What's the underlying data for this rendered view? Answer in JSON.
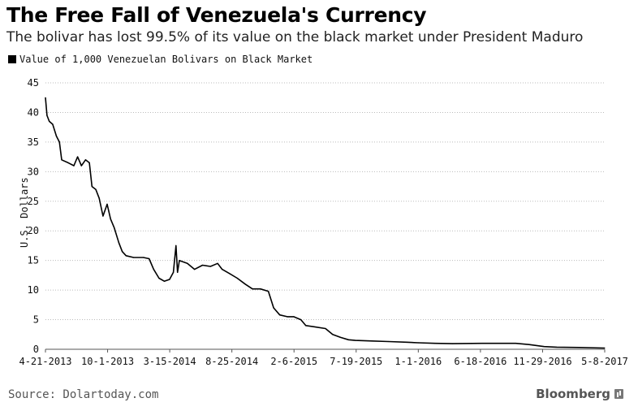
{
  "title": "The Free Fall of Venezuela's Currency",
  "subtitle": "The bolivar has lost 99.5% of its value on the black market under President Maduro",
  "source": "Source: Dolartoday.com",
  "brand": "Bloomberg",
  "colors": {
    "line": "#000000",
    "grid": "#bbbbbb",
    "axis": "#555555",
    "swatch": "#000000"
  },
  "chart_data": {
    "type": "line",
    "title": "The Free Fall of Venezuela's Currency",
    "ylabel": "U.S. Dollars",
    "ylim": [
      0,
      45
    ],
    "yticks": [
      0,
      5,
      10,
      15,
      20,
      25,
      30,
      35,
      40,
      45
    ],
    "grid": true,
    "xlim": [
      "2013-04-21",
      "2017-05-08"
    ],
    "xticks": [
      "4-21-2013",
      "10-1-2013",
      "3-15-2014",
      "8-25-2014",
      "2-6-2015",
      "7-19-2015",
      "1-1-2016",
      "6-18-2016",
      "11-29-2016",
      "5-8-2017"
    ],
    "legend": "top-left",
    "series": [
      {
        "name": "Value of 1,000 Venezuelan Bolivars on Black Market",
        "points": [
          [
            "2013-04-21",
            42.5
          ],
          [
            "2013-04-25",
            39.5
          ],
          [
            "2013-05-01",
            38.5
          ],
          [
            "2013-05-10",
            38.0
          ],
          [
            "2013-05-20",
            36.0
          ],
          [
            "2013-05-28",
            35.0
          ],
          [
            "2013-06-03",
            32.0
          ],
          [
            "2013-06-20",
            31.5
          ],
          [
            "2013-07-05",
            31.0
          ],
          [
            "2013-07-15",
            32.5
          ],
          [
            "2013-07-25",
            31.0
          ],
          [
            "2013-08-05",
            32.0
          ],
          [
            "2013-08-15",
            31.5
          ],
          [
            "2013-08-22",
            27.5
          ],
          [
            "2013-09-01",
            27.0
          ],
          [
            "2013-09-10",
            25.5
          ],
          [
            "2013-09-20",
            22.5
          ],
          [
            "2013-10-01",
            24.5
          ],
          [
            "2013-10-10",
            22.0
          ],
          [
            "2013-10-20",
            20.5
          ],
          [
            "2013-11-01",
            18.0
          ],
          [
            "2013-11-10",
            16.5
          ],
          [
            "2013-11-20",
            15.8
          ],
          [
            "2013-12-10",
            15.5
          ],
          [
            "2014-01-05",
            15.5
          ],
          [
            "2014-01-20",
            15.3
          ],
          [
            "2014-02-01",
            13.5
          ],
          [
            "2014-02-15",
            12.0
          ],
          [
            "2014-03-01",
            11.5
          ],
          [
            "2014-03-15",
            11.8
          ],
          [
            "2014-03-25",
            13.0
          ],
          [
            "2014-04-01",
            17.5
          ],
          [
            "2014-04-05",
            13.0
          ],
          [
            "2014-04-10",
            15.0
          ],
          [
            "2014-05-01",
            14.5
          ],
          [
            "2014-05-20",
            13.5
          ],
          [
            "2014-06-10",
            14.2
          ],
          [
            "2014-07-01",
            14.0
          ],
          [
            "2014-07-20",
            14.5
          ],
          [
            "2014-08-01",
            13.5
          ],
          [
            "2014-08-20",
            12.8
          ],
          [
            "2014-09-10",
            12.0
          ],
          [
            "2014-10-01",
            11.0
          ],
          [
            "2014-10-20",
            10.2
          ],
          [
            "2014-11-10",
            10.2
          ],
          [
            "2014-12-01",
            9.8
          ],
          [
            "2014-12-15",
            7.0
          ],
          [
            "2014-12-31",
            5.8
          ],
          [
            "2015-01-20",
            5.5
          ],
          [
            "2015-02-06",
            5.5
          ],
          [
            "2015-02-25",
            5.0
          ],
          [
            "2015-03-10",
            4.0
          ],
          [
            "2015-04-01",
            3.8
          ],
          [
            "2015-05-01",
            3.5
          ],
          [
            "2015-05-20",
            2.5
          ],
          [
            "2015-06-10",
            2.0
          ],
          [
            "2015-07-01",
            1.6
          ],
          [
            "2015-07-19",
            1.5
          ],
          [
            "2015-09-01",
            1.4
          ],
          [
            "2015-10-15",
            1.3
          ],
          [
            "2015-12-01",
            1.2
          ],
          [
            "2016-01-01",
            1.1
          ],
          [
            "2016-02-15",
            1.0
          ],
          [
            "2016-04-01",
            0.95
          ],
          [
            "2016-06-18",
            1.0
          ],
          [
            "2016-08-01",
            1.0
          ],
          [
            "2016-09-15",
            1.0
          ],
          [
            "2016-10-20",
            0.8
          ],
          [
            "2016-11-29",
            0.45
          ],
          [
            "2017-01-01",
            0.35
          ],
          [
            "2017-03-01",
            0.3
          ],
          [
            "2017-05-08",
            0.2
          ]
        ]
      }
    ]
  }
}
